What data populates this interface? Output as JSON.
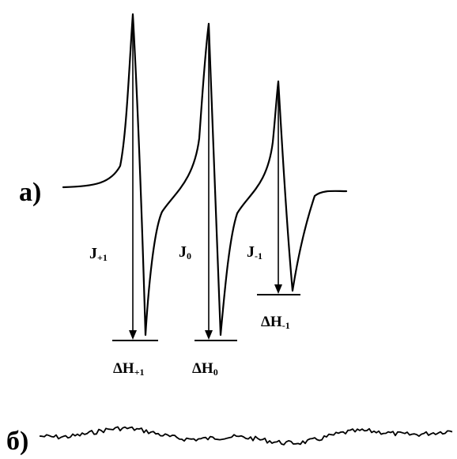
{
  "chart_data": {
    "type": "line",
    "title": "",
    "panels": [
      {
        "label": "a)",
        "description_lines": [
          {
            "name": "J+1",
            "main": "J",
            "sub": "+1",
            "width_label_main": "ΔH",
            "width_label_sub": "+1"
          },
          {
            "name": "J0",
            "main": "J",
            "sub": "0",
            "width_label_main": "ΔH",
            "width_label_sub": "0"
          },
          {
            "name": "J-1",
            "main": "J",
            "sub": "-1",
            "width_label_main": "ΔH",
            "width_label_sub": "-1"
          }
        ],
        "relative_amplitudes": [
          1.0,
          0.97,
          0.7
        ]
      },
      {
        "label": "б)"
      }
    ],
    "axes_visible": false,
    "grid": false
  }
}
